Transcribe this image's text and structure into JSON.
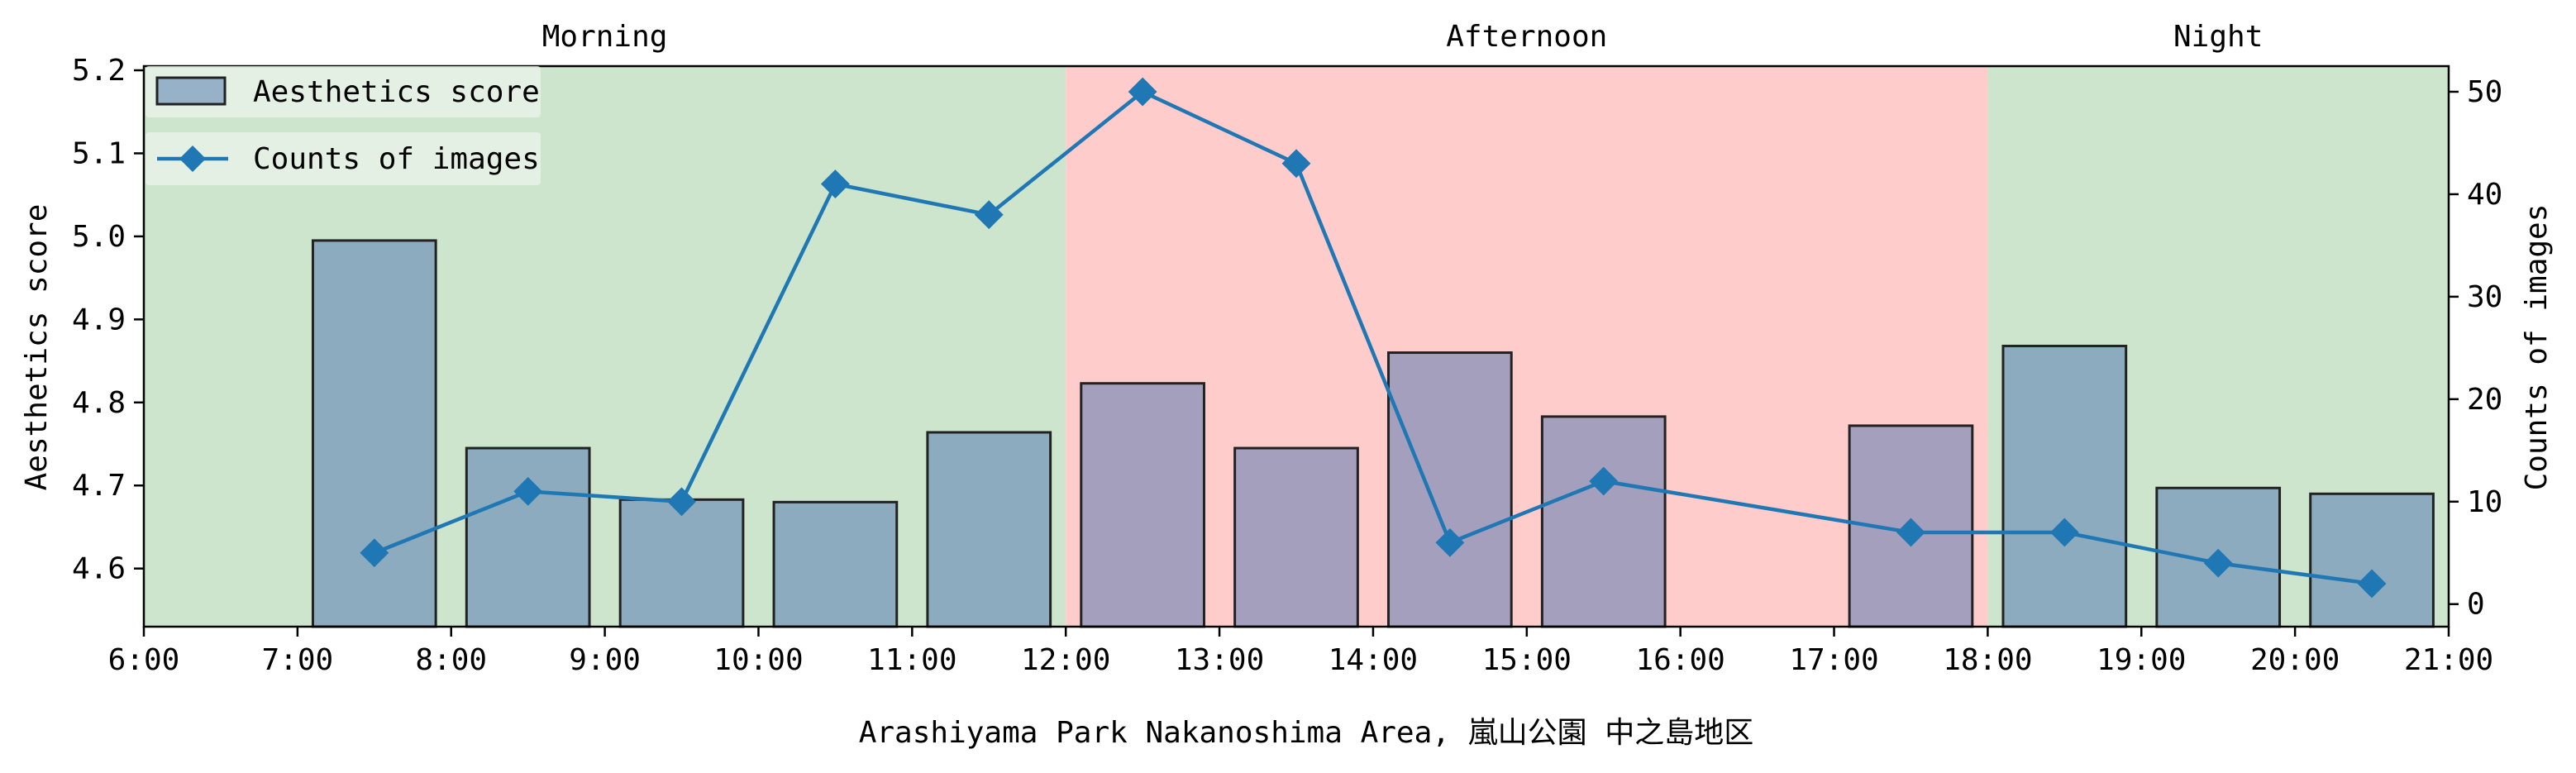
{
  "chart_data": {
    "type": "bar+line",
    "xlabel": "Arashiyama Park Nakanoshima Area, 嵐山公園 中之島地区",
    "ylabel_left": "Aesthetics score",
    "ylabel_right": "Counts of images",
    "x_range": [
      6,
      21
    ],
    "x_ticks": [
      "6:00",
      "7:00",
      "8:00",
      "9:00",
      "10:00",
      "11:00",
      "12:00",
      "13:00",
      "14:00",
      "15:00",
      "16:00",
      "17:00",
      "18:00",
      "19:00",
      "20:00",
      "21:00"
    ],
    "y_left_range": [
      4.53,
      5.205
    ],
    "y_left_ticks": [
      "4.6",
      "4.7",
      "4.8",
      "4.9",
      "5.0",
      "5.1",
      "5.2"
    ],
    "y_right_range": [
      -2.2,
      52.5
    ],
    "y_right_ticks": [
      "0",
      "10",
      "20",
      "30",
      "40",
      "50"
    ],
    "periods": [
      {
        "label": "Morning",
        "start": 6,
        "end": 12,
        "color": "#cce5cc"
      },
      {
        "label": "Afternoon",
        "start": 12,
        "end": 18,
        "color": "#ffcccc"
      },
      {
        "label": "Night",
        "start": 18,
        "end": 21,
        "color": "#cce5cc"
      }
    ],
    "series": [
      {
        "name": "Aesthetics score",
        "kind": "bar",
        "color": "#4c72b0",
        "x": [
          7.5,
          8.5,
          9.5,
          10.5,
          11.5,
          12.5,
          13.5,
          14.5,
          15.5,
          17.5,
          18.5,
          19.5,
          20.5
        ],
        "values": [
          4.995,
          4.745,
          4.683,
          4.68,
          4.764,
          4.823,
          4.745,
          4.86,
          4.783,
          4.772,
          4.868,
          4.697,
          4.69
        ]
      },
      {
        "name": "Counts of images",
        "kind": "line",
        "color": "#1f77b4",
        "x": [
          7.5,
          8.5,
          9.5,
          10.5,
          11.5,
          12.5,
          13.5,
          14.5,
          15.5,
          17.5,
          18.5,
          19.5,
          20.5
        ],
        "values": [
          5,
          11,
          10,
          41,
          38,
          50,
          43,
          6,
          12,
          7,
          7,
          4,
          2
        ]
      }
    ],
    "legend_position": "upper-left",
    "grid": false
  }
}
